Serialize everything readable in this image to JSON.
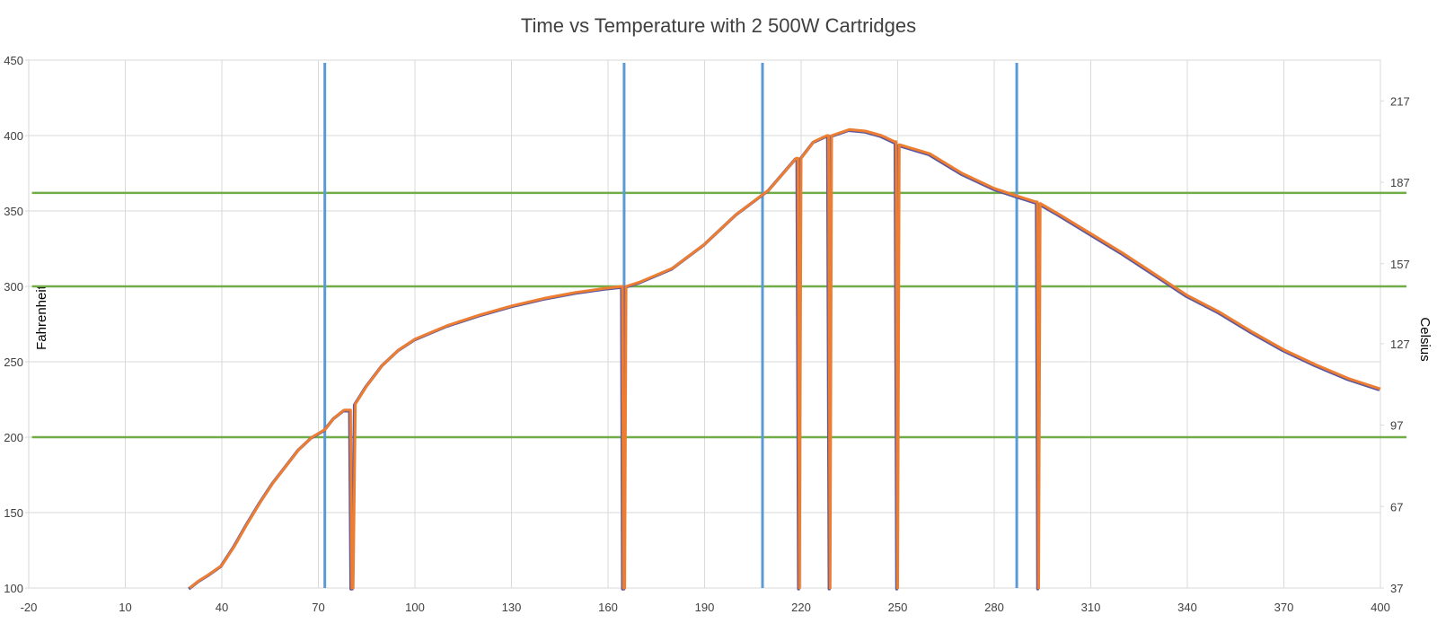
{
  "chart_data": {
    "type": "line",
    "title": "Time vs Temperature with 2 500W Cartridges",
    "xlabel": "",
    "ylabel": "Fahrenheit",
    "y2label": "Celsius",
    "xlim": [
      -20,
      400
    ],
    "ylim": [
      100,
      450
    ],
    "x_ticks": [
      "-20",
      "10",
      "40",
      "70",
      "100",
      "130",
      "160",
      "190",
      "220",
      "250",
      "280",
      "310",
      "340",
      "370",
      "400"
    ],
    "y_ticks": [
      "100",
      "150",
      "200",
      "250",
      "300",
      "350",
      "400",
      "450"
    ],
    "y2_ticks": [
      "37",
      "67",
      "97",
      "127",
      "157",
      "187",
      "217"
    ],
    "y2_tick_values_f": [
      100,
      154,
      208,
      262,
      315,
      369,
      423
    ],
    "grid": true,
    "colors": {
      "temperature": "#ED7D31",
      "temperature_shadow": "#5B57A0",
      "marker": "#5B9BD5",
      "threshold": "#70AD47",
      "grid": "#D9D9D9",
      "text": "#404040"
    },
    "reference_lines": {
      "vertical_x": [
        72,
        165,
        208,
        287
      ],
      "horizontal_y": [
        200,
        300,
        362
      ]
    },
    "series": [
      {
        "x": [
          30,
          33,
          36,
          40,
          44,
          48,
          52,
          56,
          60,
          64,
          68,
          72,
          75,
          78,
          80,
          80.4,
          80.8,
          81.5,
          85,
          90,
          95,
          100,
          110,
          120,
          130,
          140,
          150,
          160,
          164.5,
          164.8,
          165.2,
          165.6,
          170,
          180,
          190,
          200,
          210,
          218.5,
          219,
          219.5,
          220,
          224,
          228,
          228.5,
          229,
          229.5,
          235,
          240,
          245,
          249,
          249.5,
          250,
          250.5,
          260,
          270,
          280,
          287,
          293,
          293.4,
          293.8,
          294.3,
          300,
          310,
          320,
          330,
          340,
          350,
          360,
          370,
          380,
          390,
          400
        ],
        "values": [
          100,
          105,
          109,
          115,
          128,
          143,
          157,
          170,
          181,
          192,
          200,
          205,
          213,
          218,
          218,
          100,
          100,
          222,
          234,
          248,
          258,
          265,
          274,
          281,
          287,
          292,
          296,
          299,
          300,
          100,
          100,
          300,
          303,
          312,
          328,
          348,
          364,
          385,
          385,
          100,
          385,
          396,
          400,
          400,
          100,
          400,
          404,
          403,
          400,
          396,
          396,
          100,
          394,
          388,
          375,
          365,
          360,
          356,
          356,
          100,
          355,
          348,
          335,
          322,
          308,
          294,
          283,
          270,
          258,
          248,
          239,
          232
        ]
      }
    ]
  }
}
